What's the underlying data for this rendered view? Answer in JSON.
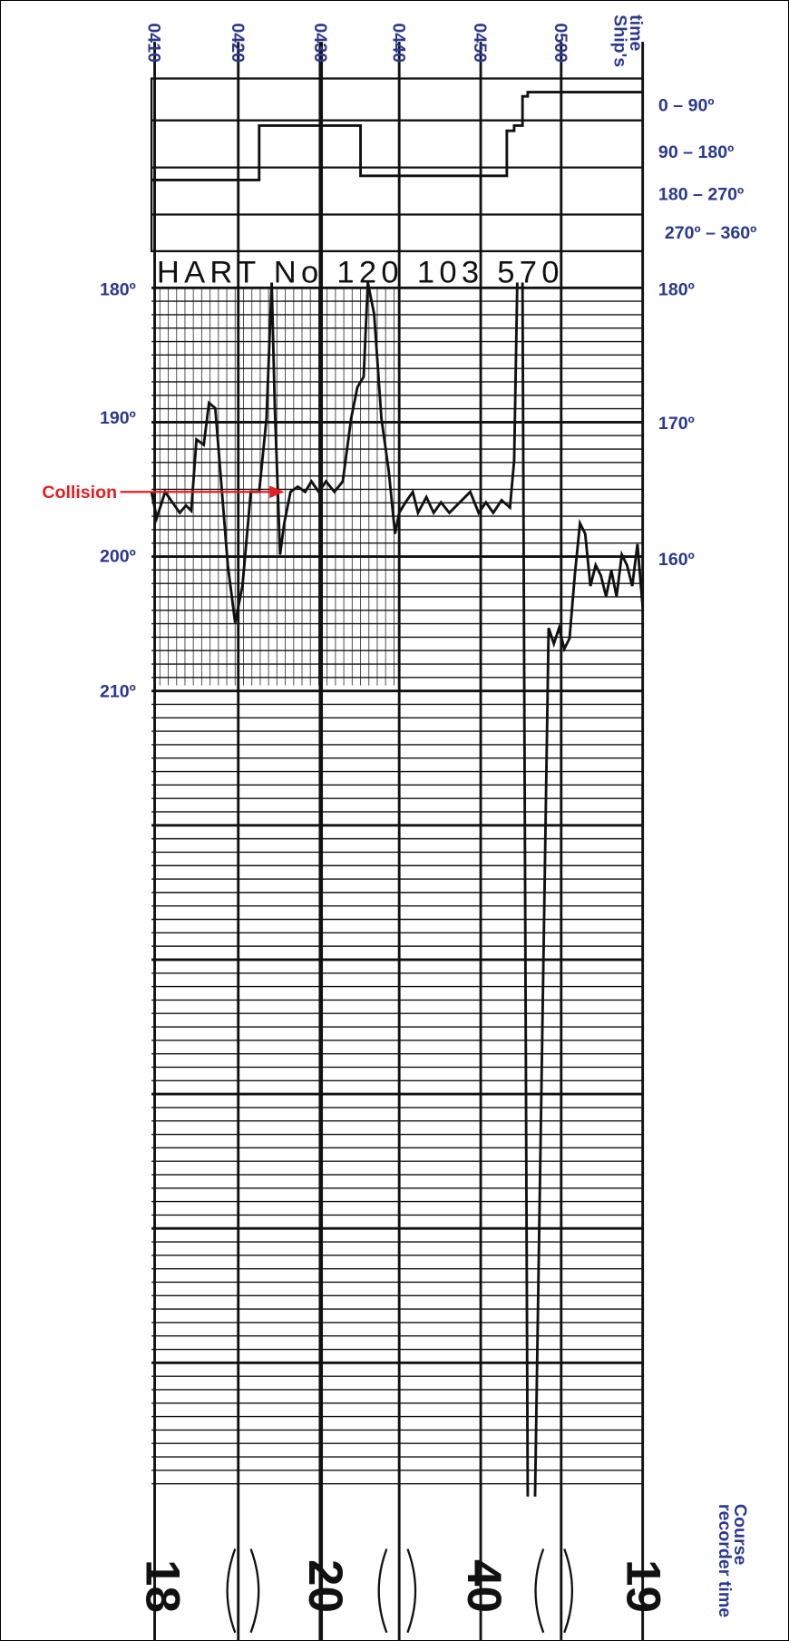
{
  "ships_time": {
    "title_lines": [
      "Ship's",
      "time"
    ],
    "ticks": [
      "0410",
      "0420",
      "0430",
      "0440",
      "0450",
      "0500"
    ]
  },
  "quadrants": [
    "0 – 90º",
    "90 – 180º",
    "180 – 270º",
    "270º – 360º"
  ],
  "left_scale": [
    "180º",
    "190º",
    "200º",
    "210º"
  ],
  "right_scale": [
    "180º",
    "170º",
    "160º"
  ],
  "annotation": "Collision",
  "chart_paper_text": "HART No 120 103 570",
  "recorder_time": {
    "title_lines": [
      "Course",
      "recorder time"
    ],
    "marks": [
      "18",
      "20",
      "40",
      "19"
    ]
  }
}
